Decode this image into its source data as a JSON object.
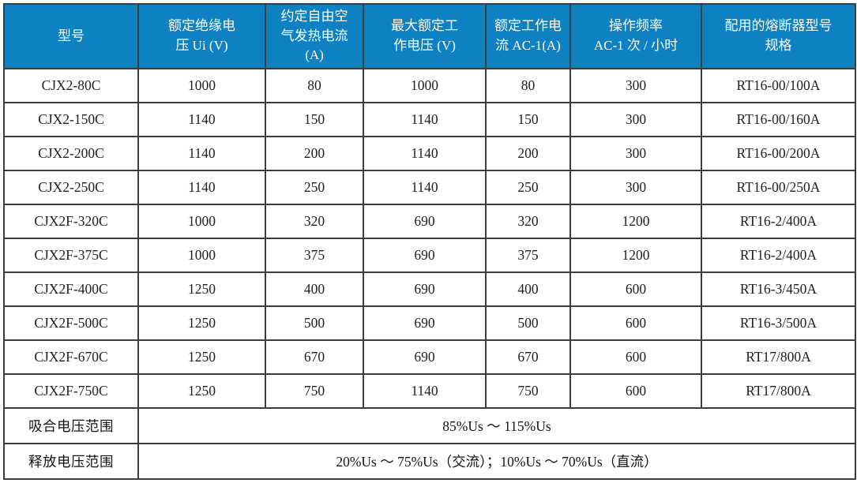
{
  "table": {
    "header_bg_color": "#0e81c2",
    "header_text_color": "#ffffff",
    "border_color": "#3d3d3d",
    "columns": [
      "型号",
      "额定绝缘电\n压 Ui (V)",
      "约定自由空\n气发热电流\n(A)",
      "最大额定工\n作电压 (V)",
      "额定工作电\n流 AC-1(A)",
      "操作频率\nAC-1 次 / 小时",
      "配用的熔断器型号\n规格"
    ],
    "rows": [
      [
        "CJX2-80C",
        "1000",
        "80",
        "1000",
        "80",
        "300",
        "RT16-00/100A"
      ],
      [
        "CJX2-150C",
        "1140",
        "150",
        "1140",
        "150",
        "300",
        "RT16-00/160A"
      ],
      [
        "CJX2-200C",
        "1140",
        "200",
        "1140",
        "200",
        "300",
        "RT16-00/200A"
      ],
      [
        "CJX2-250C",
        "1140",
        "250",
        "1140",
        "250",
        "300",
        "RT16-00/250A"
      ],
      [
        "CJX2F-320C",
        "1000",
        "320",
        "690",
        "320",
        "1200",
        "RT16-2/400A"
      ],
      [
        "CJX2F-375C",
        "1000",
        "375",
        "690",
        "375",
        "1200",
        "RT16-2/400A"
      ],
      [
        "CJX2F-400C",
        "1250",
        "400",
        "690",
        "400",
        "600",
        "RT16-3/450A"
      ],
      [
        "CJX2F-500C",
        "1250",
        "500",
        "690",
        "500",
        "600",
        "RT16-3/500A"
      ],
      [
        "CJX2F-670C",
        "1250",
        "670",
        "690",
        "670",
        "600",
        "RT17/800A"
      ],
      [
        "CJX2F-750C",
        "1250",
        "750",
        "1140",
        "750",
        "600",
        "RT17/800A"
      ]
    ],
    "footer_rows": [
      {
        "label": "吸合电压范围",
        "value": "85%Us ～ 115%Us"
      },
      {
        "label": "释放电压范围",
        "value": "20%Us ～ 75%Us（交流）；10%Us ～ 70%Us（直流）"
      }
    ]
  }
}
